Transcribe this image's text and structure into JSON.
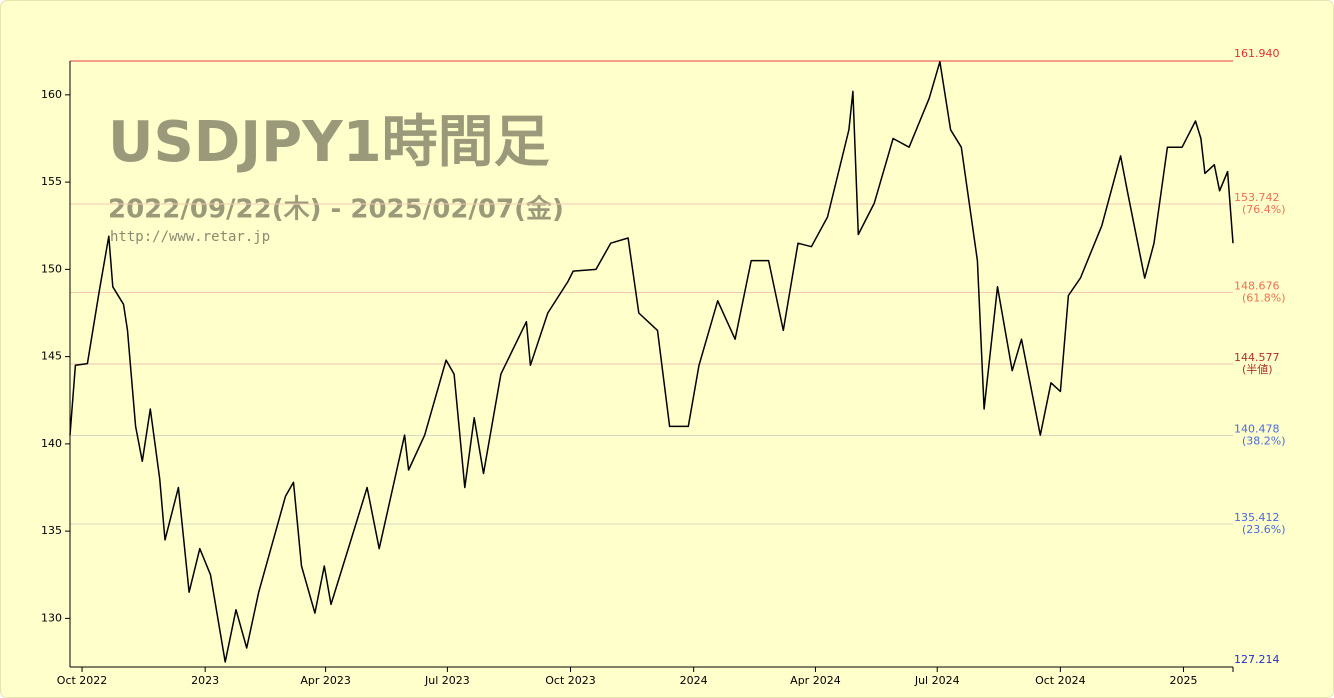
{
  "chart_data": {
    "type": "line",
    "title": "USDJPY1時間足",
    "subtitle": "2022/09/22(木) - 2025/02/07(金)",
    "source": "http://www.retar.jp",
    "color": "#000000",
    "xlim": [
      "2022-09-22",
      "2025-02-07"
    ],
    "xticks": [
      {
        "value": "2022-10-01",
        "label": "Oct 2022"
      },
      {
        "value": "2023-01-01",
        "label": "2023"
      },
      {
        "value": "2023-04-01",
        "label": "Apr 2023"
      },
      {
        "value": "2023-07-01",
        "label": "Jul 2023"
      },
      {
        "value": "2023-10-01",
        "label": "Oct 2023"
      },
      {
        "value": "2024-01-01",
        "label": "2024"
      },
      {
        "value": "2024-04-01",
        "label": "Apr 2024"
      },
      {
        "value": "2024-07-01",
        "label": "Jul 2024"
      },
      {
        "value": "2024-10-01",
        "label": "Oct 2024"
      },
      {
        "value": "2025-01-01",
        "label": "2025"
      }
    ],
    "ylim": [
      127.214,
      161.94
    ],
    "yticks": [
      130,
      135,
      140,
      145,
      150,
      155,
      160
    ],
    "levels": [
      {
        "value": 161.94,
        "label": "161.940",
        "color": "#e03030",
        "line_color": "#e04040"
      },
      {
        "value": 153.742,
        "note": "(76.4%)",
        "color": "#f07050",
        "line_color": "#f5c8b0"
      },
      {
        "value": 148.676,
        "note": "(61.8%)",
        "color": "#f07050",
        "line_color": "#f5c8b0"
      },
      {
        "value": 144.577,
        "note": "(半値)",
        "color": "#b03030",
        "line_color": "#f0c0b0"
      },
      {
        "value": 140.478,
        "note": "(38.2%)",
        "color": "#4a6ae0",
        "line_color": "#d8d8c0"
      },
      {
        "value": 135.412,
        "note": "(23.6%)",
        "color": "#4a6ae0",
        "line_color": "#d8d8c0"
      },
      {
        "value": 127.214,
        "color": "#2030d0",
        "line_color": "#4050d0"
      }
    ],
    "x": [
      "2022-09-22",
      "2022-09-26",
      "2022-10-05",
      "2022-10-14",
      "2022-10-21",
      "2022-10-24",
      "2022-11-01",
      "2022-11-04",
      "2022-11-10",
      "2022-11-15",
      "2022-11-21",
      "2022-11-28",
      "2022-12-02",
      "2022-12-12",
      "2022-12-20",
      "2022-12-28",
      "2023-01-05",
      "2023-01-16",
      "2023-01-24",
      "2023-02-01",
      "2023-02-10",
      "2023-02-22",
      "2023-03-02",
      "2023-03-08",
      "2023-03-14",
      "2023-03-24",
      "2023-03-31",
      "2023-04-05",
      "2023-04-20",
      "2023-05-02",
      "2023-05-11",
      "2023-05-30",
      "2023-06-02",
      "2023-06-14",
      "2023-06-30",
      "2023-07-06",
      "2023-07-14",
      "2023-07-21",
      "2023-07-28",
      "2023-08-10",
      "2023-08-29",
      "2023-09-01",
      "2023-09-14",
      "2023-09-29",
      "2023-10-03",
      "2023-10-20",
      "2023-10-31",
      "2023-11-13",
      "2023-11-21",
      "2023-12-05",
      "2023-12-14",
      "2023-12-28",
      "2024-01-05",
      "2024-01-19",
      "2024-02-01",
      "2024-02-13",
      "2024-02-26",
      "2024-03-08",
      "2024-03-19",
      "2024-03-29",
      "2024-04-10",
      "2024-04-26",
      "2024-04-29",
      "2024-05-03",
      "2024-05-15",
      "2024-05-29",
      "2024-06-10",
      "2024-06-25",
      "2024-07-03",
      "2024-07-11",
      "2024-07-19",
      "2024-07-31",
      "2024-08-05",
      "2024-08-15",
      "2024-08-26",
      "2024-09-02",
      "2024-09-16",
      "2024-09-24",
      "2024-10-01",
      "2024-10-07",
      "2024-10-16",
      "2024-11-01",
      "2024-11-15",
      "2024-11-20",
      "2024-12-03",
      "2024-12-10",
      "2024-12-20",
      "2024-12-31",
      "2025-01-10",
      "2025-01-14",
      "2025-01-17",
      "2025-01-24",
      "2025-01-28",
      "2025-02-03",
      "2025-02-07"
    ],
    "values": [
      140.5,
      144.5,
      144.6,
      148.8,
      151.9,
      149,
      148,
      146.5,
      141,
      139,
      142,
      138,
      134.5,
      137.5,
      131.5,
      134,
      132.5,
      127.5,
      130.5,
      128.3,
      131.5,
      134.8,
      137,
      137.8,
      133,
      130.3,
      133,
      130.8,
      134.5,
      137.5,
      134,
      140.5,
      138.5,
      140.5,
      144.8,
      144,
      137.5,
      141.5,
      138.3,
      144,
      147,
      144.5,
      147.5,
      149.3,
      149.9,
      150,
      151.5,
      151.8,
      147.5,
      146.5,
      141,
      141,
      144.5,
      148.2,
      146,
      150.5,
      150.5,
      146.5,
      151.5,
      151.3,
      153,
      158,
      160.2,
      152,
      153.8,
      157.5,
      157,
      159.8,
      161.9,
      158,
      157,
      150.5,
      142,
      149,
      144.2,
      146,
      140.5,
      143.5,
      143,
      148.5,
      149.5,
      152.5,
      156.5,
      154.5,
      149.5,
      151.5,
      157,
      157,
      158.5,
      157.5,
      155.5,
      156,
      154.5,
      155.6,
      151.5
    ]
  }
}
